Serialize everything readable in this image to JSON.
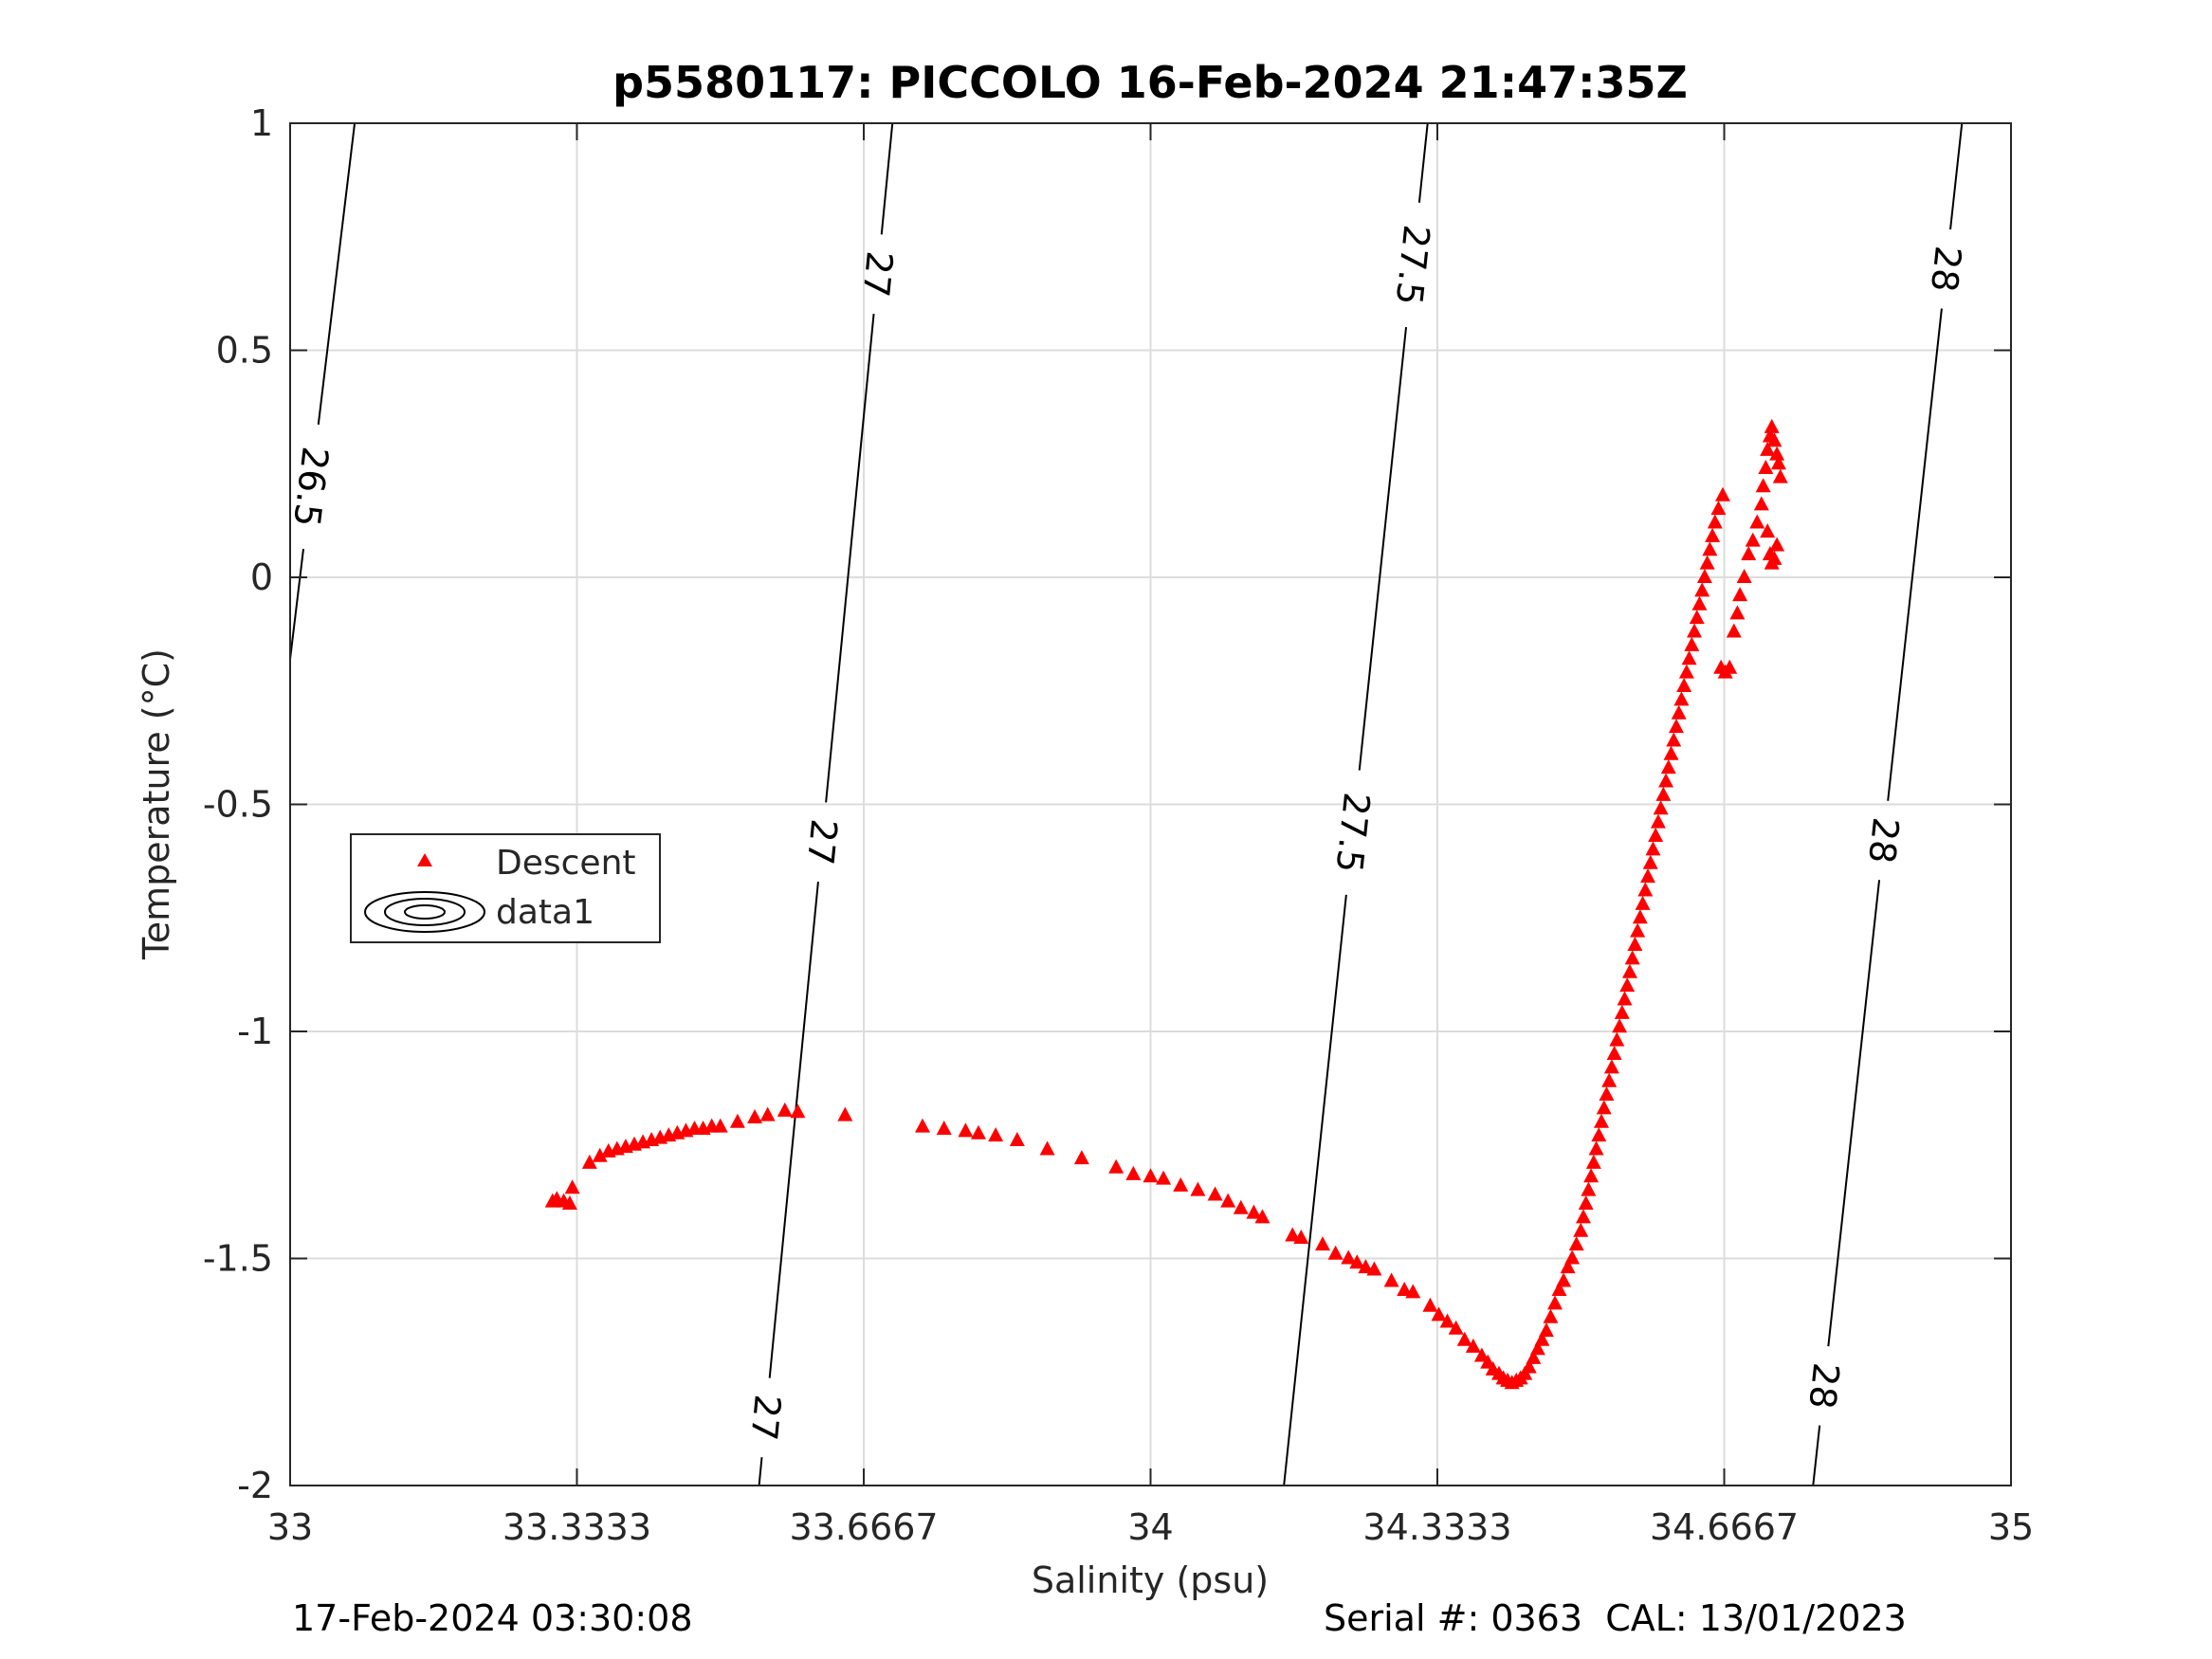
{
  "chart_data": {
    "type": "scatter",
    "title": "p5580117: PICCOLO 16-Feb-2024 21:47:35Z",
    "xlabel": "Salinity (psu)",
    "ylabel": "Temperature (°C)",
    "xlim": [
      33,
      35
    ],
    "ylim": [
      -2,
      1
    ],
    "xticks": [
      33,
      33.3333,
      33.6667,
      34,
      34.3333,
      34.6667,
      35
    ],
    "xtick_labels": [
      "33",
      "33.3333",
      "33.6667",
      "34",
      "34.3333",
      "34.6667",
      "35"
    ],
    "yticks": [
      1,
      0.5,
      0,
      -0.5,
      -1,
      -1.5,
      -2
    ],
    "ytick_labels": [
      "1",
      "0.5",
      "0",
      "-0.5",
      "-1",
      "-1.5",
      "-2"
    ],
    "grid": true,
    "legend_position": "middle-left",
    "legend": [
      {
        "label": "Descent",
        "marker": "triangle",
        "color": "#ff0000"
      },
      {
        "label": "data1",
        "marker": "contour",
        "color": "#000000"
      }
    ],
    "series": [
      {
        "name": "Descent",
        "color": "#ff0000",
        "marker": "triangle",
        "points": [
          [
            33.305,
            -1.375
          ],
          [
            33.31,
            -1.37
          ],
          [
            33.318,
            -1.375
          ],
          [
            33.325,
            -1.38
          ],
          [
            33.328,
            -1.345
          ],
          [
            33.348,
            -1.29
          ],
          [
            33.36,
            -1.275
          ],
          [
            33.37,
            -1.265
          ],
          [
            33.38,
            -1.26
          ],
          [
            33.39,
            -1.255
          ],
          [
            33.4,
            -1.25
          ],
          [
            33.41,
            -1.245
          ],
          [
            33.42,
            -1.24
          ],
          [
            33.43,
            -1.235
          ],
          [
            33.44,
            -1.23
          ],
          [
            33.45,
            -1.225
          ],
          [
            33.46,
            -1.22
          ],
          [
            33.47,
            -1.215
          ],
          [
            33.48,
            -1.215
          ],
          [
            33.49,
            -1.21
          ],
          [
            33.5,
            -1.21
          ],
          [
            33.52,
            -1.2
          ],
          [
            33.54,
            -1.19
          ],
          [
            33.555,
            -1.185
          ],
          [
            33.575,
            -1.175
          ],
          [
            33.59,
            -1.178
          ],
          [
            33.645,
            -1.185
          ],
          [
            33.735,
            -1.21
          ],
          [
            33.76,
            -1.215
          ],
          [
            33.785,
            -1.22
          ],
          [
            33.8,
            -1.225
          ],
          [
            33.82,
            -1.23
          ],
          [
            33.845,
            -1.24
          ],
          [
            33.88,
            -1.26
          ],
          [
            33.92,
            -1.28
          ],
          [
            33.96,
            -1.3
          ],
          [
            33.98,
            -1.315
          ],
          [
            34.0,
            -1.32
          ],
          [
            34.015,
            -1.325
          ],
          [
            34.035,
            -1.34
          ],
          [
            34.055,
            -1.35
          ],
          [
            34.075,
            -1.36
          ],
          [
            34.09,
            -1.375
          ],
          [
            34.105,
            -1.39
          ],
          [
            34.12,
            -1.4
          ],
          [
            34.13,
            -1.41
          ],
          [
            34.165,
            -1.45
          ],
          [
            34.175,
            -1.455
          ],
          [
            34.2,
            -1.47
          ],
          [
            34.215,
            -1.49
          ],
          [
            34.23,
            -1.5
          ],
          [
            34.24,
            -1.51
          ],
          [
            34.25,
            -1.52
          ],
          [
            34.26,
            -1.525
          ],
          [
            34.28,
            -1.55
          ],
          [
            34.295,
            -1.57
          ],
          [
            34.305,
            -1.575
          ],
          [
            34.325,
            -1.605
          ],
          [
            34.335,
            -1.625
          ],
          [
            34.345,
            -1.64
          ],
          [
            34.355,
            -1.655
          ],
          [
            34.365,
            -1.68
          ],
          [
            34.375,
            -1.695
          ],
          [
            34.385,
            -1.715
          ],
          [
            34.392,
            -1.73
          ],
          [
            34.398,
            -1.745
          ],
          [
            34.405,
            -1.755
          ],
          [
            34.41,
            -1.765
          ],
          [
            34.415,
            -1.77
          ],
          [
            34.42,
            -1.775
          ],
          [
            34.425,
            -1.77
          ],
          [
            34.43,
            -1.765
          ],
          [
            34.435,
            -1.755
          ],
          [
            34.44,
            -1.74
          ],
          [
            34.445,
            -1.72
          ],
          [
            34.45,
            -1.7
          ],
          [
            34.455,
            -1.68
          ],
          [
            34.46,
            -1.66
          ],
          [
            34.465,
            -1.63
          ],
          [
            34.47,
            -1.6
          ],
          [
            34.475,
            -1.57
          ],
          [
            34.48,
            -1.55
          ],
          [
            34.485,
            -1.52
          ],
          [
            34.49,
            -1.5
          ],
          [
            34.495,
            -1.47
          ],
          [
            34.5,
            -1.44
          ],
          [
            34.503,
            -1.41
          ],
          [
            34.506,
            -1.38
          ],
          [
            34.509,
            -1.35
          ],
          [
            34.512,
            -1.32
          ],
          [
            34.515,
            -1.29
          ],
          [
            34.518,
            -1.26
          ],
          [
            34.521,
            -1.23
          ],
          [
            34.524,
            -1.2
          ],
          [
            34.527,
            -1.17
          ],
          [
            34.53,
            -1.14
          ],
          [
            34.533,
            -1.11
          ],
          [
            34.536,
            -1.08
          ],
          [
            34.539,
            -1.05
          ],
          [
            34.542,
            -1.02
          ],
          [
            34.545,
            -0.99
          ],
          [
            34.548,
            -0.96
          ],
          [
            34.551,
            -0.93
          ],
          [
            34.554,
            -0.9
          ],
          [
            34.557,
            -0.87
          ],
          [
            34.56,
            -0.84
          ],
          [
            34.563,
            -0.81
          ],
          [
            34.566,
            -0.78
          ],
          [
            34.569,
            -0.75
          ],
          [
            34.572,
            -0.72
          ],
          [
            34.575,
            -0.69
          ],
          [
            34.578,
            -0.66
          ],
          [
            34.581,
            -0.63
          ],
          [
            34.584,
            -0.6
          ],
          [
            34.587,
            -0.57
          ],
          [
            34.59,
            -0.54
          ],
          [
            34.593,
            -0.51
          ],
          [
            34.596,
            -0.48
          ],
          [
            34.599,
            -0.45
          ],
          [
            34.602,
            -0.42
          ],
          [
            34.605,
            -0.39
          ],
          [
            34.608,
            -0.36
          ],
          [
            34.611,
            -0.33
          ],
          [
            34.614,
            -0.3
          ],
          [
            34.617,
            -0.27
          ],
          [
            34.62,
            -0.24
          ],
          [
            34.623,
            -0.21
          ],
          [
            34.626,
            -0.18
          ],
          [
            34.629,
            -0.15
          ],
          [
            34.632,
            -0.12
          ],
          [
            34.635,
            -0.09
          ],
          [
            34.638,
            -0.06
          ],
          [
            34.641,
            -0.03
          ],
          [
            34.644,
            0.0
          ],
          [
            34.647,
            0.03
          ],
          [
            34.65,
            0.06
          ],
          [
            34.653,
            0.09
          ],
          [
            34.656,
            0.12
          ],
          [
            34.66,
            0.15
          ],
          [
            34.665,
            0.18
          ],
          [
            34.663,
            -0.2
          ],
          [
            34.668,
            -0.21
          ],
          [
            34.673,
            -0.2
          ],
          [
            34.678,
            -0.12
          ],
          [
            34.682,
            -0.08
          ],
          [
            34.685,
            -0.04
          ],
          [
            34.69,
            0.0
          ],
          [
            34.695,
            0.05
          ],
          [
            34.7,
            0.08
          ],
          [
            34.705,
            0.12
          ],
          [
            34.71,
            0.16
          ],
          [
            34.712,
            0.2
          ],
          [
            34.715,
            0.24
          ],
          [
            34.717,
            0.28
          ],
          [
            34.72,
            0.31
          ],
          [
            34.722,
            0.33
          ],
          [
            34.725,
            0.3
          ],
          [
            34.728,
            0.27
          ],
          [
            34.73,
            0.25
          ],
          [
            34.732,
            0.22
          ],
          [
            34.717,
            0.1
          ],
          [
            34.72,
            0.05
          ],
          [
            34.722,
            0.03
          ],
          [
            34.725,
            0.04
          ],
          [
            34.728,
            0.07
          ]
        ]
      }
    ],
    "contours": [
      {
        "label": "26.5",
        "label_value": 26.5,
        "line": [
          [
            33.0,
            -0.18
          ],
          [
            33.075,
            1.0
          ]
        ],
        "label_at": [
          [
            33.022,
            0.2
          ]
        ]
      },
      {
        "label": "27",
        "label_value": 27,
        "line": [
          [
            33.545,
            -2.0
          ],
          [
            33.7,
            1.0
          ]
        ],
        "label_at": [
          [
            33.55,
            -1.85
          ],
          [
            33.602,
            -0.58
          ],
          [
            33.67,
            0.67
          ]
        ]
      },
      {
        "label": "27.5",
        "label_value": 27.5,
        "line": [
          [
            34.155,
            -2.0
          ],
          [
            34.322,
            1.0
          ]
        ],
        "label_at": [
          [
            34.225,
            -0.56
          ],
          [
            34.295,
            0.69
          ]
        ]
      },
      {
        "label": "28",
        "label_value": 28,
        "line": [
          [
            34.77,
            -2.0
          ],
          [
            34.943,
            1.0
          ]
        ],
        "label_at": [
          [
            34.78,
            -1.78
          ],
          [
            34.855,
            -0.58
          ],
          [
            34.92,
            0.68
          ]
        ]
      }
    ]
  },
  "footer": {
    "timestamp": "17-Feb-2024 03:30:08",
    "serial": "Serial #: 0363  CAL: 13/01/2023"
  }
}
